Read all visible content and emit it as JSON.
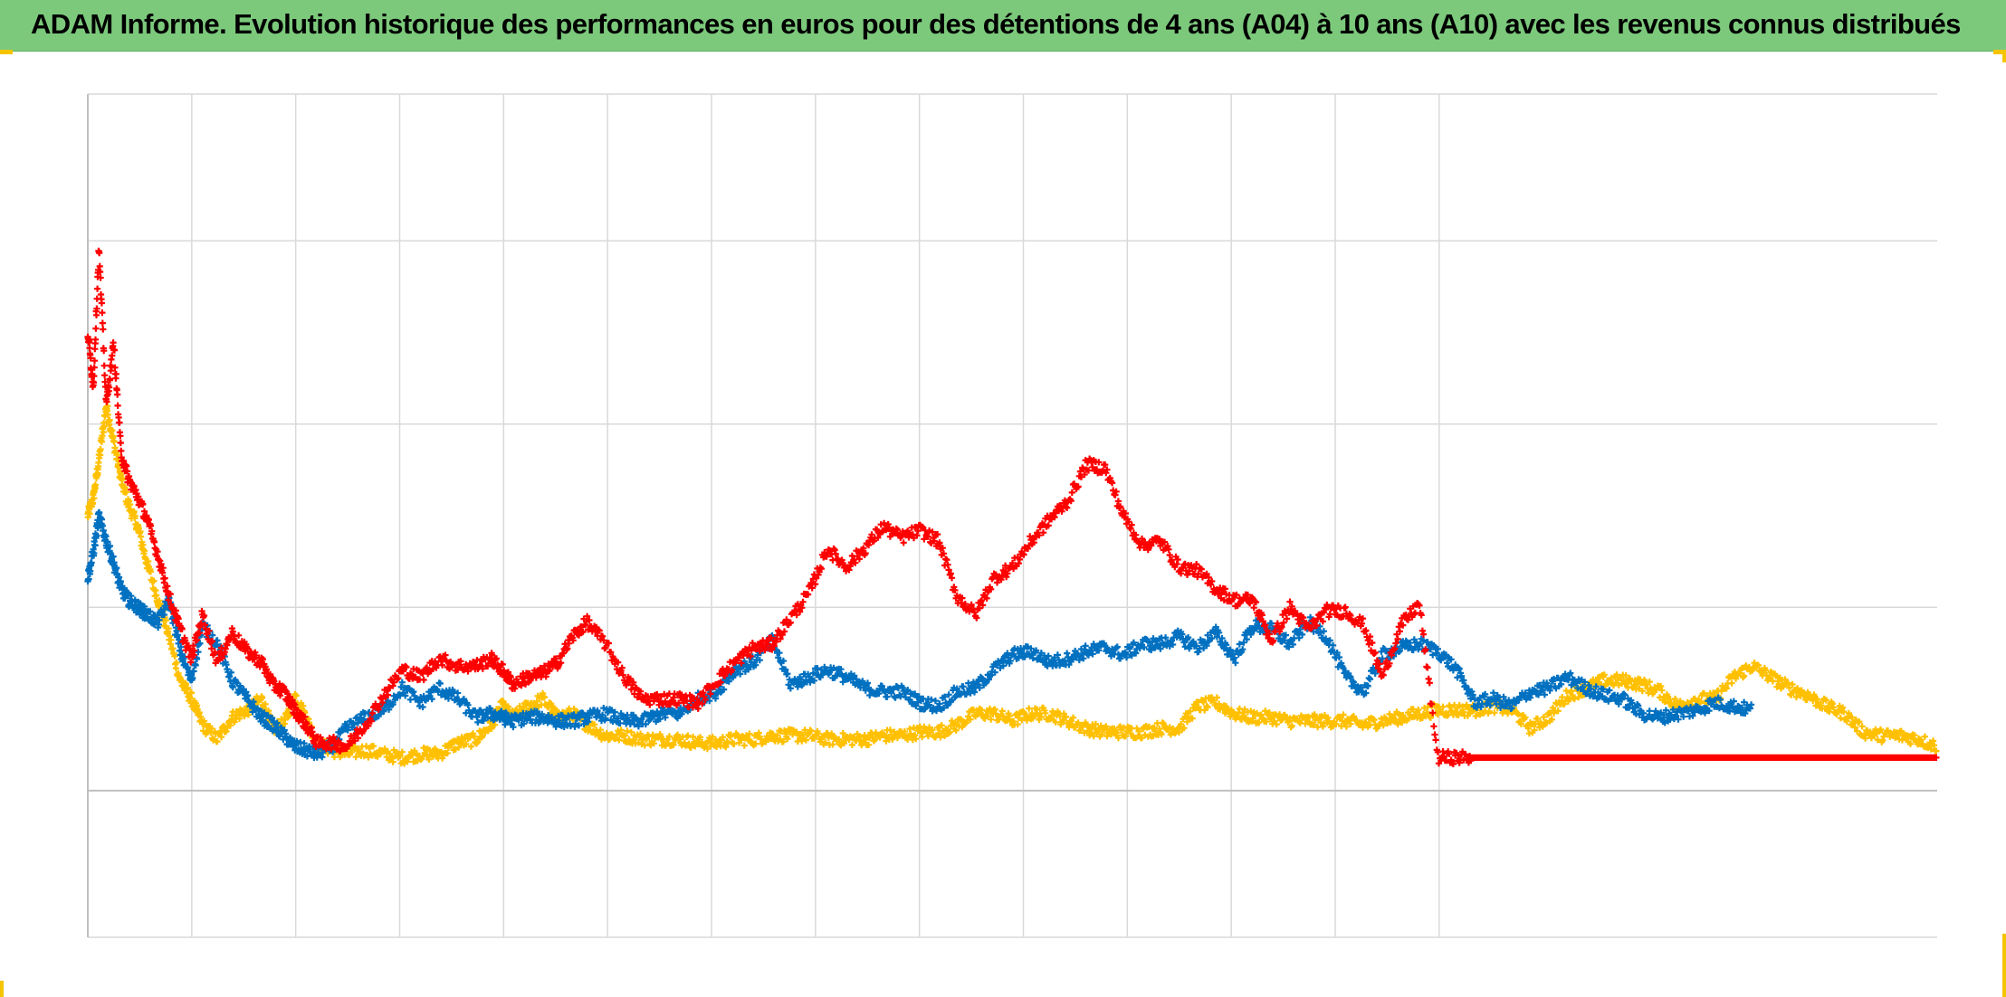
{
  "title": "ADAM Informe. Evolution historique des performances en euros pour des détentions de 4 ans (A04) à 10 ans (A10) avec les revenus connus distribués",
  "colors": {
    "title_bg": "#7cc97c",
    "grid": "#d9d9d9",
    "zero_line": "#bfbfbf",
    "corner_accent": "#f5c400"
  },
  "chart_data": {
    "type": "scatter",
    "marker": "plus",
    "x_range": [
      0,
      1000
    ],
    "ylim": [
      -0.4,
      1.9
    ],
    "grid": true,
    "tick_labels_visible": false,
    "series": [
      {
        "color": "#ffc000",
        "x": [
          0,
          3,
          6,
          10,
          14,
          18,
          22,
          27,
          32,
          38,
          44,
          50,
          56,
          62,
          70,
          78,
          86,
          94,
          100,
          106,
          112,
          118,
          124,
          132,
          140,
          150,
          160,
          170,
          180,
          190,
          200,
          210,
          218,
          224,
          230,
          238,
          246,
          254,
          262,
          270,
          280,
          290,
          300,
          310,
          320,
          330,
          340,
          350,
          360,
          370,
          380,
          390,
          400,
          410,
          420,
          430,
          440,
          450,
          460,
          470,
          480,
          490,
          500,
          510,
          520,
          530,
          540,
          550,
          560,
          570,
          580,
          590,
          600,
          610,
          620,
          630,
          640,
          650,
          660,
          670,
          680,
          690,
          700,
          710,
          720,
          730,
          740,
          750,
          760,
          770,
          780,
          790,
          800,
          810,
          820,
          830,
          840,
          850,
          860,
          870,
          880,
          890,
          900,
          910,
          920,
          930,
          940,
          950,
          960,
          970,
          980,
          990,
          1000
        ],
        "y": [
          0.75,
          0.8,
          0.9,
          1.05,
          0.95,
          0.85,
          0.78,
          0.72,
          0.62,
          0.52,
          0.42,
          0.3,
          0.25,
          0.18,
          0.14,
          0.2,
          0.22,
          0.25,
          0.17,
          0.18,
          0.26,
          0.2,
          0.13,
          0.11,
          0.1,
          0.11,
          0.1,
          0.09,
          0.1,
          0.1,
          0.13,
          0.14,
          0.18,
          0.23,
          0.2,
          0.23,
          0.25,
          0.2,
          0.21,
          0.18,
          0.15,
          0.15,
          0.14,
          0.14,
          0.14,
          0.13,
          0.13,
          0.14,
          0.14,
          0.15,
          0.15,
          0.15,
          0.14,
          0.14,
          0.14,
          0.15,
          0.15,
          0.16,
          0.16,
          0.18,
          0.21,
          0.21,
          0.19,
          0.21,
          0.21,
          0.19,
          0.17,
          0.16,
          0.16,
          0.16,
          0.17,
          0.17,
          0.23,
          0.24,
          0.21,
          0.2,
          0.2,
          0.19,
          0.19,
          0.19,
          0.19,
          0.18,
          0.19,
          0.2,
          0.21,
          0.22,
          0.22,
          0.22,
          0.23,
          0.22,
          0.17,
          0.2,
          0.26,
          0.28,
          0.3,
          0.3,
          0.29,
          0.27,
          0.23,
          0.25,
          0.25,
          0.31,
          0.34,
          0.31,
          0.28,
          0.26,
          0.23,
          0.21,
          0.16,
          0.15,
          0.15,
          0.14,
          0.12
        ]
      },
      {
        "color": "#0070c0",
        "x": [
          0,
          3,
          6,
          10,
          14,
          18,
          22,
          27,
          32,
          38,
          44,
          50,
          56,
          62,
          70,
          78,
          86,
          94,
          100,
          106,
          112,
          118,
          124,
          132,
          140,
          150,
          160,
          170,
          180,
          190,
          200,
          210,
          218,
          224,
          230,
          238,
          246,
          254,
          262,
          270,
          280,
          290,
          300,
          310,
          320,
          330,
          340,
          350,
          360,
          370,
          380,
          390,
          400,
          410,
          420,
          430,
          440,
          450,
          460,
          470,
          480,
          490,
          500,
          510,
          520,
          530,
          540,
          550,
          560,
          570,
          580,
          590,
          600,
          610,
          620,
          630,
          640,
          650,
          660,
          670,
          680,
          690,
          700,
          710,
          720,
          730,
          740,
          750,
          760,
          770,
          780,
          790,
          800,
          810,
          820,
          830,
          840,
          850,
          860,
          870,
          880,
          890,
          900
        ],
        "y": [
          0.58,
          0.65,
          0.75,
          0.68,
          0.62,
          0.55,
          0.52,
          0.5,
          0.48,
          0.46,
          0.52,
          0.38,
          0.3,
          0.45,
          0.4,
          0.3,
          0.25,
          0.2,
          0.18,
          0.15,
          0.12,
          0.11,
          0.1,
          0.12,
          0.17,
          0.2,
          0.22,
          0.28,
          0.24,
          0.28,
          0.25,
          0.2,
          0.21,
          0.2,
          0.19,
          0.2,
          0.2,
          0.19,
          0.19,
          0.2,
          0.21,
          0.19,
          0.19,
          0.21,
          0.21,
          0.25,
          0.27,
          0.33,
          0.35,
          0.41,
          0.29,
          0.31,
          0.33,
          0.31,
          0.28,
          0.27,
          0.27,
          0.24,
          0.23,
          0.27,
          0.28,
          0.33,
          0.37,
          0.38,
          0.35,
          0.36,
          0.38,
          0.39,
          0.37,
          0.4,
          0.4,
          0.42,
          0.39,
          0.43,
          0.36,
          0.45,
          0.44,
          0.4,
          0.46,
          0.42,
          0.31,
          0.27,
          0.37,
          0.39,
          0.4,
          0.38,
          0.33,
          0.24,
          0.25,
          0.23,
          0.27,
          0.28,
          0.31,
          0.28,
          0.26,
          0.25,
          0.21,
          0.2,
          0.21,
          0.22,
          0.24,
          0.23,
          0.22
        ]
      },
      {
        "color": "#ff0000",
        "x": [
          0,
          3,
          6,
          10,
          14,
          18,
          22,
          27,
          32,
          38,
          44,
          50,
          56,
          62,
          70,
          78,
          86,
          94,
          100,
          106,
          112,
          118,
          124,
          132,
          140,
          150,
          160,
          170,
          180,
          190,
          200,
          210,
          218,
          224,
          230,
          238,
          246,
          254,
          262,
          270,
          280,
          290,
          300,
          310,
          320,
          330,
          340,
          350,
          360,
          370,
          380,
          390,
          400,
          410,
          420,
          430,
          440,
          450,
          460,
          470,
          480,
          490,
          500,
          510,
          520,
          530,
          540,
          550,
          560,
          570,
          580,
          590,
          600,
          610,
          620,
          630,
          640,
          650,
          660,
          670,
          680,
          690,
          700,
          710,
          720,
          730,
          740,
          750,
          760,
          770,
          780,
          790,
          800,
          810,
          820,
          830,
          840,
          850,
          860,
          870,
          880,
          890,
          900,
          910,
          920,
          930,
          940,
          950,
          960,
          970,
          980,
          990,
          1000
        ],
        "y": [
          1.25,
          1.1,
          1.48,
          1.05,
          1.22,
          0.92,
          0.85,
          0.8,
          0.74,
          0.64,
          0.53,
          0.44,
          0.36,
          0.48,
          0.35,
          0.43,
          0.38,
          0.35,
          0.29,
          0.27,
          0.22,
          0.18,
          0.13,
          0.13,
          0.12,
          0.18,
          0.26,
          0.33,
          0.31,
          0.36,
          0.34,
          0.34,
          0.36,
          0.33,
          0.29,
          0.31,
          0.32,
          0.35,
          0.42,
          0.46,
          0.4,
          0.31,
          0.25,
          0.25,
          0.25,
          0.24,
          0.3,
          0.35,
          0.39,
          0.4,
          0.47,
          0.54,
          0.66,
          0.61,
          0.66,
          0.72,
          0.69,
          0.71,
          0.68,
          0.53,
          0.48,
          0.58,
          0.61,
          0.68,
          0.74,
          0.79,
          0.89,
          0.88,
          0.75,
          0.67,
          0.68,
          0.61,
          0.6,
          0.55,
          0.52,
          0.52,
          0.41,
          0.5,
          0.44,
          0.49,
          0.49,
          0.45,
          0.31,
          0.45,
          0.51,
          0.09,
          0.09,
          0.09,
          0.09,
          0.09,
          0.09,
          0.09,
          0.09,
          0.09,
          0.09,
          0.09,
          0.09,
          0.09,
          0.09,
          0.09,
          0.09,
          0.09,
          0.09,
          0.09,
          0.09,
          0.09,
          0.09,
          0.09,
          0.09,
          0.09,
          0.09,
          0.09,
          0.09
        ],
        "note_flat_from_x": 748
      }
    ]
  }
}
